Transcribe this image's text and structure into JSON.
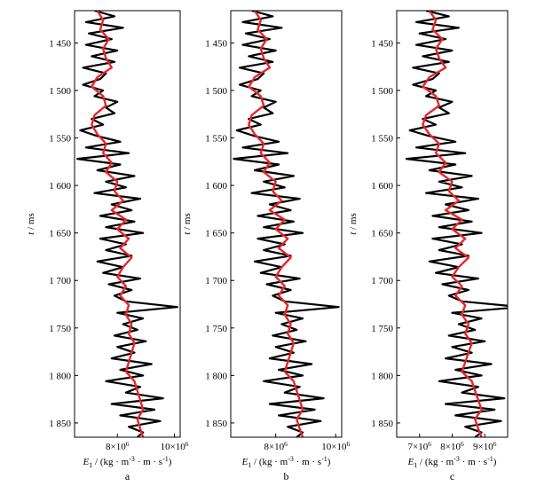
{
  "chart_data": {
    "type": "line",
    "y_axis": {
      "label_italic": "t",
      "label_unit": " / ms",
      "range": [
        1416,
        1865
      ],
      "inverted": true,
      "ticks": [
        1450,
        1500,
        1550,
        1600,
        1650,
        1700,
        1750,
        1800,
        1850
      ],
      "tick_labels": [
        "1 450",
        "1 500",
        "1 550",
        "1 600",
        "1 650",
        "1 700",
        "1 750",
        "1 800",
        "1 850"
      ]
    },
    "x_axis": {
      "label_var": "E",
      "label_sub": "1",
      "label_unit": " / (kg · m",
      "label_sup1": "-3",
      "label_mid": " · m · s",
      "label_sup2": "-1",
      "label_end": ")"
    },
    "series_colors": {
      "observed": "#000000",
      "estimated": "#e8262b"
    },
    "panels": [
      {
        "letter": "a",
        "xlim": [
          6.5,
          10.2
        ],
        "xticks": [
          {
            "value": 8.0,
            "base": "8×10",
            "exp": "6"
          },
          {
            "value": 10.0,
            "base": "10×10",
            "exp": "6"
          }
        ]
      },
      {
        "letter": "b",
        "xlim": [
          6.5,
          10.2
        ],
        "xticks": [
          {
            "value": 8.0,
            "base": "8×10",
            "exp": "6"
          },
          {
            "value": 10.0,
            "base": "10×10",
            "exp": "6"
          }
        ]
      },
      {
        "letter": "c",
        "xlim": [
          6.3,
          9.7
        ],
        "xticks": [
          {
            "value": 7.0,
            "base": "7×10",
            "exp": "6"
          },
          {
            "value": 8.0,
            "base": "8×10",
            "exp": "6"
          },
          {
            "value": 9.0,
            "base": "9×10",
            "exp": "6"
          }
        ]
      }
    ],
    "observed_impedance": {
      "t": [
        1416,
        1422,
        1428,
        1434,
        1440,
        1446,
        1452,
        1458,
        1464,
        1470,
        1476,
        1482,
        1488,
        1494,
        1500,
        1506,
        1512,
        1518,
        1524,
        1530,
        1536,
        1542,
        1548,
        1554,
        1560,
        1566,
        1572,
        1578,
        1584,
        1590,
        1596,
        1602,
        1608,
        1614,
        1620,
        1626,
        1632,
        1638,
        1644,
        1650,
        1656,
        1662,
        1668,
        1674,
        1680,
        1686,
        1692,
        1698,
        1704,
        1710,
        1716,
        1722,
        1728,
        1734,
        1740,
        1746,
        1752,
        1758,
        1764,
        1770,
        1776,
        1782,
        1788,
        1794,
        1800,
        1806,
        1812,
        1818,
        1824,
        1830,
        1836,
        1842,
        1848,
        1854,
        1860,
        1865
      ],
      "E": [
        7.2,
        7.9,
        6.9,
        8.2,
        7.0,
        7.8,
        6.9,
        8.0,
        7.1,
        7.9,
        6.8,
        7.6,
        7.4,
        6.8,
        7.5,
        7.2,
        8.0,
        7.6,
        7.9,
        7.1,
        7.5,
        6.7,
        7.3,
        8.1,
        6.9,
        8.4,
        6.6,
        8.1,
        7.3,
        8.6,
        7.6,
        8.3,
        7.2,
        8.8,
        7.8,
        8.5,
        7.4,
        8.6,
        7.6,
        8.9,
        7.4,
        8.3,
        7.6,
        8.5,
        7.3,
        8.2,
        7.5,
        8.8,
        7.7,
        8.5,
        7.9,
        8.3,
        10.1,
        8.0,
        8.9,
        8.2,
        8.7,
        7.9,
        9.0,
        8.0,
        8.6,
        7.8,
        9.2,
        8.1,
        8.9,
        7.6,
        8.8,
        8.3,
        9.6,
        7.8,
        9.3,
        8.1,
        9.5,
        8.4,
        8.9,
        8.7
      ]
    },
    "estimated_impedance": {
      "t": [
        1416,
        1426,
        1436,
        1446,
        1456,
        1466,
        1476,
        1486,
        1496,
        1506,
        1516,
        1526,
        1536,
        1546,
        1556,
        1566,
        1576,
        1586,
        1596,
        1606,
        1616,
        1626,
        1636,
        1646,
        1656,
        1666,
        1676,
        1686,
        1696,
        1706,
        1716,
        1726,
        1736,
        1746,
        1756,
        1766,
        1776,
        1786,
        1796,
        1806,
        1816,
        1826,
        1836,
        1846,
        1856,
        1865
      ],
      "E": [
        7.3,
        7.5,
        7.4,
        7.7,
        7.5,
        7.6,
        7.8,
        7.3,
        7.1,
        7.5,
        7.6,
        7.2,
        7.1,
        7.3,
        7.6,
        7.5,
        7.8,
        7.6,
        8.0,
        7.9,
        8.2,
        7.8,
        8.3,
        8.0,
        8.4,
        8.1,
        8.5,
        8.2,
        8.0,
        8.3,
        8.1,
        8.4,
        8.3,
        8.5,
        8.4,
        8.6,
        8.5,
        8.4,
        8.3,
        8.6,
        8.7,
        8.8,
        8.9,
        8.7,
        8.8,
        8.9
      ]
    }
  }
}
